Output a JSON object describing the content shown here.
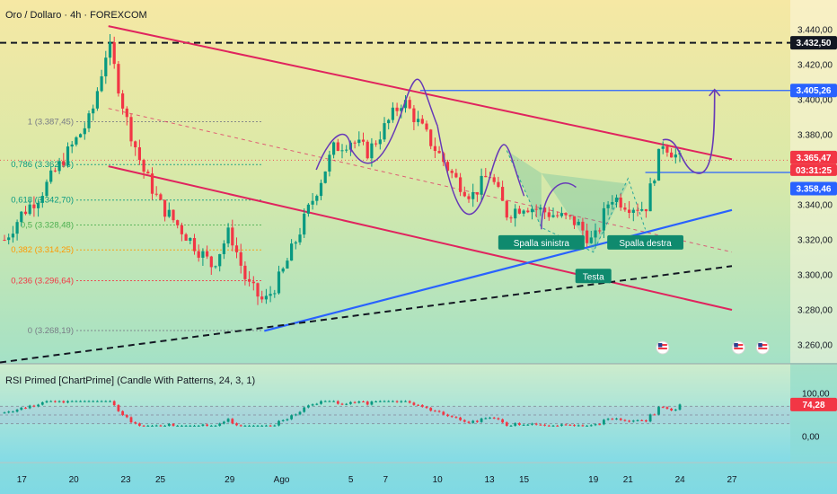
{
  "header": {
    "title": "Oro / Dollaro · 4h · FOREXCOM"
  },
  "rsi_panel": {
    "title": "RSI Primed [ChartPrime] (Candle With Patterns, 24, 3, 1)",
    "value_label": "74,28",
    "ticks": [
      "100,00",
      "0,00"
    ]
  },
  "badges": {
    "ath": "3.432,50",
    "target": "3.405,26",
    "price": "3.365,47",
    "timer": "03:31:25",
    "neckline": "3.358,46"
  },
  "colors": {
    "bull": "#089981",
    "bear": "#f23645",
    "channel": "#e0245e",
    "trendline": "#2962ff",
    "projection": "#673ab7",
    "pattern_label_bg": "#0f8a6e",
    "badge_dark": "#131722",
    "badge_red": "#f23645"
  },
  "chart_data": [
    {
      "type": "candlestick",
      "title": "Oro / Dollaro · 4h · FOREXCOM",
      "symbol": "Oro / Dollaro",
      "timeframe": "4h",
      "exchange": "FOREXCOM",
      "y_ticks": [
        "3.440,00",
        "3.420,00",
        "3.400,00",
        "3.380,00",
        "3.360,00",
        "3.340,00",
        "3.320,00",
        "3.300,00",
        "3.280,00",
        "3.260,00"
      ],
      "ylim": [
        3255,
        3445
      ],
      "x_tick_labels": [
        "17",
        "20",
        "23",
        "25",
        "29",
        "Ago",
        "5",
        "7",
        "10",
        "13",
        "15",
        "19",
        "21",
        "24",
        "27"
      ],
      "price_points": [
        {
          "date": "2025-07-16",
          "price": 3320
        },
        {
          "date": "2025-07-17",
          "price": 3335
        },
        {
          "date": "2025-07-18",
          "price": 3345
        },
        {
          "date": "2025-07-21",
          "price": 3390
        },
        {
          "date": "2025-07-22",
          "price": 3432.5
        },
        {
          "date": "2025-07-23",
          "price": 3390
        },
        {
          "date": "2025-07-24",
          "price": 3360
        },
        {
          "date": "2025-07-25",
          "price": 3340
        },
        {
          "date": "2025-07-28",
          "price": 3305
        },
        {
          "date": "2025-07-29",
          "price": 3325
        },
        {
          "date": "2025-07-30",
          "price": 3295
        },
        {
          "date": "2025-07-31",
          "price": 3284
        },
        {
          "date": "2025-08-01",
          "price": 3300
        },
        {
          "date": "2025-08-04",
          "price": 3372
        },
        {
          "date": "2025-08-05",
          "price": 3377
        },
        {
          "date": "2025-08-06",
          "price": 3370
        },
        {
          "date": "2025-08-07",
          "price": 3385
        },
        {
          "date": "2025-08-08",
          "price": 3400
        },
        {
          "date": "2025-08-11",
          "price": 3355
        },
        {
          "date": "2025-08-12",
          "price": 3345
        },
        {
          "date": "2025-08-13",
          "price": 3358
        },
        {
          "date": "2025-08-14",
          "price": 3335
        },
        {
          "date": "2025-08-15",
          "price": 3340
        },
        {
          "date": "2025-08-18",
          "price": 3330
        },
        {
          "date": "2025-08-19",
          "price": 3318
        },
        {
          "date": "2025-08-20",
          "price": 3345
        },
        {
          "date": "2025-08-21",
          "price": 3340
        },
        {
          "date": "2025-08-22",
          "price": 3338
        },
        {
          "date": "2025-08-23",
          "price": 3376
        },
        {
          "date": "2025-08-24",
          "price": 3365.47
        }
      ],
      "horizontal_levels": [
        {
          "label": "3.432,50",
          "price": 3432.5,
          "style": "dashed"
        },
        {
          "label": "3.405,26",
          "price": 3405.26,
          "style": "solid"
        },
        {
          "label": "3.358,46",
          "price": 3358.46,
          "style": "solid"
        },
        {
          "label": "3.365,47",
          "price": 3365.47,
          "style": "current"
        }
      ],
      "fibonacci": [
        {
          "label": "1 (3.387,45)",
          "level": 1,
          "price": 3387.45
        },
        {
          "label": "0,786 (3.362,96)",
          "level": 0.786,
          "price": 3362.96
        },
        {
          "label": "0,618 (3.342,70)",
          "level": 0.618,
          "price": 3342.7
        },
        {
          "label": "0,5 (3.328,48)",
          "level": 0.5,
          "price": 3328.48
        },
        {
          "label": "0,382 (3.314,25)",
          "level": 0.382,
          "price": 3314.25
        },
        {
          "label": "0,236 (3.296,64)",
          "level": 0.236,
          "price": 3296.64
        },
        {
          "label": "0 (3.268,19)",
          "level": 0,
          "price": 3268.19
        }
      ],
      "pattern": {
        "name": "head-and-shoulders",
        "labels": [
          {
            "text": "Spalla sinistra",
            "date": "2025-08-16",
            "price": 3318
          },
          {
            "text": "Testa",
            "date": "2025-08-19",
            "price": 3306
          },
          {
            "text": "Spalla destra",
            "date": "2025-08-22",
            "price": 3318
          }
        ]
      },
      "projection_target": 3405.26
    },
    {
      "type": "line",
      "title": "RSI Primed [ChartPrime] (Candle With Patterns, 24, 3, 1)",
      "y_ticks": [
        "100,00",
        "0,00"
      ],
      "ylim": [
        0,
        100
      ],
      "last_value": 74.28
    }
  ]
}
